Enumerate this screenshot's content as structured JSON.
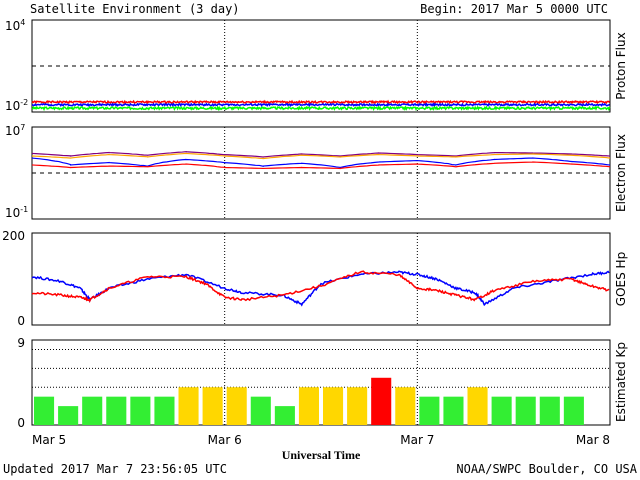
{
  "header": {
    "title": "Satellite Environment (3 day)",
    "begin": "Begin:  2017 Mar 5 0000 UTC"
  },
  "footer": {
    "updated": "Updated 2017 Mar  7 23:56:05 UTC",
    "credit": "NOAA/SWPC Boulder, CO USA",
    "xlabel": "Universal Time"
  },
  "x_ticks": [
    "Mar 5",
    "Mar 6",
    "Mar 7",
    "Mar 8"
  ],
  "colors": {
    "red": "#ff0000",
    "blue": "#0000ff",
    "green": "#00ff00",
    "orange": "#ffa500",
    "purple": "#800080",
    "kp_green": "#33ee33",
    "kp_yellow": "#ffd700",
    "kp_red": "#ff0000"
  },
  "chart_data": [
    {
      "type": "line",
      "ylabel": "Proton Flux",
      "scale": "log",
      "ylim": [
        0.01,
        10000
      ],
      "ytick_labels": [
        "10^4",
        "10^-2"
      ],
      "threshold_lines": [
        10
      ],
      "series": [
        {
          "color": "red",
          "level": 0.045,
          "noise": 0.012
        },
        {
          "color": "blue",
          "level": 0.03,
          "noise": 0.008
        },
        {
          "color": "green",
          "level": 0.018,
          "noise": 0.006
        }
      ]
    },
    {
      "type": "line",
      "ylabel": "Electron Flux",
      "scale": "log",
      "ylim": [
        0.1,
        10000000
      ],
      "ytick_labels": [
        "10^7",
        "10^-1"
      ],
      "threshold_lines": [
        1000
      ],
      "series": [
        {
          "color": "purple",
          "points": [
            [
              0,
              50000
            ],
            [
              0.2,
              30000
            ],
            [
              0.4,
              60000
            ],
            [
              0.6,
              35000
            ],
            [
              0.8,
              70000
            ],
            [
              1.0,
              40000
            ],
            [
              1.2,
              25000
            ],
            [
              1.4,
              45000
            ],
            [
              1.6,
              30000
            ],
            [
              1.8,
              55000
            ],
            [
              2.0,
              40000
            ],
            [
              2.2,
              30000
            ],
            [
              2.4,
              60000
            ],
            [
              2.6,
              55000
            ],
            [
              2.8,
              45000
            ],
            [
              3.0,
              30000
            ]
          ]
        },
        {
          "color": "orange",
          "points": [
            [
              0,
              30000
            ],
            [
              0.2,
              20000
            ],
            [
              0.4,
              40000
            ],
            [
              0.6,
              25000
            ],
            [
              0.8,
              50000
            ],
            [
              1.0,
              30000
            ],
            [
              1.2,
              18000
            ],
            [
              1.4,
              35000
            ],
            [
              1.6,
              25000
            ],
            [
              1.8,
              40000
            ],
            [
              2.0,
              30000
            ],
            [
              2.2,
              25000
            ],
            [
              2.4,
              40000
            ],
            [
              2.6,
              45000
            ],
            [
              2.8,
              35000
            ],
            [
              3.0,
              20000
            ]
          ]
        },
        {
          "color": "blue",
          "points": [
            [
              0,
              20000
            ],
            [
              0.2,
              5000
            ],
            [
              0.4,
              8000
            ],
            [
              0.6,
              4000
            ],
            [
              0.8,
              15000
            ],
            [
              1.0,
              8000
            ],
            [
              1.2,
              4000
            ],
            [
              1.4,
              7000
            ],
            [
              1.6,
              3000
            ],
            [
              1.8,
              9000
            ],
            [
              2.0,
              12000
            ],
            [
              2.2,
              5000
            ],
            [
              2.4,
              15000
            ],
            [
              2.6,
              20000
            ],
            [
              2.8,
              10000
            ],
            [
              3.0,
              5000
            ]
          ]
        },
        {
          "color": "red",
          "points": [
            [
              0,
              5000
            ],
            [
              0.2,
              3000
            ],
            [
              0.4,
              4000
            ],
            [
              0.6,
              3500
            ],
            [
              0.8,
              6000
            ],
            [
              1.0,
              3000
            ],
            [
              1.2,
              2500
            ],
            [
              1.4,
              3000
            ],
            [
              1.6,
              2500
            ],
            [
              1.8,
              5000
            ],
            [
              2.0,
              6000
            ],
            [
              2.2,
              3500
            ],
            [
              2.4,
              7000
            ],
            [
              2.6,
              9000
            ],
            [
              2.8,
              6000
            ],
            [
              3.0,
              3500
            ]
          ]
        }
      ]
    },
    {
      "type": "line",
      "ylabel": "GOES Hp",
      "scale": "linear",
      "ylim": [
        0,
        200
      ],
      "ytick_labels": [
        "200",
        "0"
      ],
      "series": [
        {
          "color": "blue",
          "points": [
            [
              0,
              105
            ],
            [
              0.15,
              95
            ],
            [
              0.25,
              80
            ],
            [
              0.3,
              55
            ],
            [
              0.4,
              80
            ],
            [
              0.6,
              100
            ],
            [
              0.8,
              110
            ],
            [
              1.0,
              80
            ],
            [
              1.1,
              70
            ],
            [
              1.3,
              65
            ],
            [
              1.4,
              45
            ],
            [
              1.5,
              90
            ],
            [
              1.7,
              110
            ],
            [
              1.9,
              115
            ],
            [
              2.0,
              110
            ],
            [
              2.1,
              100
            ],
            [
              2.2,
              80
            ],
            [
              2.3,
              70
            ],
            [
              2.35,
              45
            ],
            [
              2.5,
              80
            ],
            [
              2.7,
              95
            ],
            [
              2.9,
              110
            ],
            [
              3.0,
              115
            ]
          ]
        },
        {
          "color": "red",
          "points": [
            [
              0,
              70
            ],
            [
              0.15,
              65
            ],
            [
              0.25,
              60
            ],
            [
              0.3,
              55
            ],
            [
              0.4,
              80
            ],
            [
              0.6,
              105
            ],
            [
              0.8,
              105
            ],
            [
              0.9,
              90
            ],
            [
              1.0,
              60
            ],
            [
              1.1,
              55
            ],
            [
              1.3,
              65
            ],
            [
              1.5,
              85
            ],
            [
              1.7,
              115
            ],
            [
              1.9,
              110
            ],
            [
              2.0,
              80
            ],
            [
              2.1,
              75
            ],
            [
              2.2,
              65
            ],
            [
              2.3,
              55
            ],
            [
              2.4,
              75
            ],
            [
              2.6,
              95
            ],
            [
              2.8,
              100
            ],
            [
              2.9,
              85
            ],
            [
              3.0,
              75
            ]
          ]
        }
      ]
    },
    {
      "type": "bar",
      "ylabel": "Estimated Kp",
      "ylim": [
        0,
        9
      ],
      "ytick_labels": [
        "9",
        "0"
      ],
      "gridlines": [
        4,
        6,
        8
      ],
      "bin_hours": 3,
      "values": [
        3,
        2,
        3,
        3,
        3,
        3,
        4,
        4,
        4,
        3,
        2,
        4,
        4,
        4,
        5,
        4,
        3,
        3,
        4,
        3,
        3,
        3,
        3,
        0
      ],
      "color_rule": "green <4, yellow =4, red >=5"
    }
  ]
}
